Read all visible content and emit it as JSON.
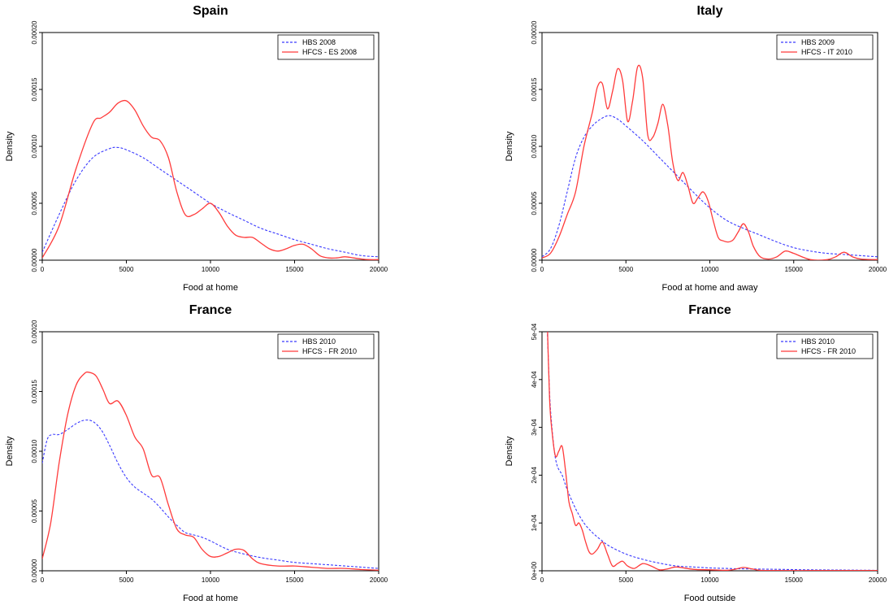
{
  "chart_data": [
    {
      "type": "line",
      "title": "Spain",
      "xlabel": "Food at home",
      "ylabel": "Density",
      "xlim": [
        0,
        20000
      ],
      "ylim": [
        0,
        0.0002
      ],
      "xticks": [
        "0",
        "5000",
        "10000",
        "15000",
        "20000"
      ],
      "xtick_values": [
        0,
        5000,
        10000,
        15000,
        20000
      ],
      "yticks": [
        "0.00000",
        "0.00005",
        "0.00010",
        "0.00015",
        "0.00020"
      ],
      "ytick_values": [
        0,
        5e-05,
        0.0001,
        0.00015,
        0.0002
      ],
      "legend_position": "top-right",
      "series": [
        {
          "name": "HBS 2008",
          "color": "#3b3bff",
          "dash": "dashed",
          "x": [
            0,
            1000,
            2000,
            3000,
            4000,
            4500,
            5000,
            6000,
            7000,
            8000,
            9000,
            10000,
            11000,
            12000,
            13000,
            14000,
            15000,
            16000,
            17000,
            18000,
            19000,
            20000
          ],
          "y": [
            7e-06,
            4e-05,
            7e-05,
            9e-05,
            9.8e-05,
            9.9e-05,
            9.7e-05,
            9e-05,
            8e-05,
            7e-05,
            6e-05,
            5e-05,
            4.2e-05,
            3.5e-05,
            2.8e-05,
            2.3e-05,
            1.8e-05,
            1.4e-05,
            1e-05,
            7e-06,
            4e-06,
            3e-06
          ]
        },
        {
          "name": "HFCS - ES 2008",
          "color": "#ff3b3b",
          "dash": "solid",
          "x": [
            0,
            1000,
            2000,
            3000,
            3500,
            4000,
            4500,
            5000,
            5500,
            6000,
            6500,
            7000,
            7500,
            8000,
            8500,
            9000,
            9500,
            10000,
            10500,
            11000,
            11500,
            12000,
            12500,
            13000,
            13500,
            14000,
            14500,
            15000,
            15500,
            16000,
            16500,
            17000,
            17500,
            18000,
            18500,
            19000,
            19500,
            20000
          ],
          "y": [
            2e-06,
            3e-05,
            8e-05,
            0.00012,
            0.000125,
            0.00013,
            0.000138,
            0.00014,
            0.000132,
            0.000118,
            0.000108,
            0.000105,
            9e-05,
            6e-05,
            4e-05,
            4e-05,
            4.5e-05,
            5e-05,
            4.2e-05,
            3e-05,
            2.2e-05,
            2e-05,
            2e-05,
            1.5e-05,
            1e-05,
            8e-06,
            1e-05,
            1.3e-05,
            1.4e-05,
            1e-05,
            4e-06,
            2e-06,
            2e-06,
            3e-06,
            2e-06,
            1e-06,
            5e-07,
            5e-07
          ]
        }
      ]
    },
    {
      "type": "line",
      "title": "Italy",
      "xlabel": "Food at home and away",
      "ylabel": "Density",
      "xlim": [
        0,
        20000
      ],
      "ylim": [
        0,
        0.0002
      ],
      "xticks": [
        "0",
        "5000",
        "10000",
        "15000",
        "20000"
      ],
      "xtick_values": [
        0,
        5000,
        10000,
        15000,
        20000
      ],
      "yticks": [
        "0.00000",
        "0.00005",
        "0.00010",
        "0.00015",
        "0.00020"
      ],
      "ytick_values": [
        0,
        5e-05,
        0.0001,
        0.00015,
        0.0002
      ],
      "legend_position": "top-right",
      "series": [
        {
          "name": "HBS 2009",
          "color": "#3b3bff",
          "dash": "dashed",
          "x": [
            0,
            500,
            1000,
            1500,
            2000,
            2500,
            3000,
            3500,
            4000,
            4500,
            5000,
            6000,
            7000,
            8000,
            9000,
            10000,
            11000,
            12000,
            13000,
            14000,
            15000,
            16000,
            17000,
            18000,
            19000,
            20000
          ],
          "y": [
            3e-06,
            1e-05,
            3e-05,
            6e-05,
            9e-05,
            0.000108,
            0.000118,
            0.000124,
            0.000127,
            0.000124,
            0.000118,
            0.000105,
            9e-05,
            7.5e-05,
            6e-05,
            4.6e-05,
            3.5e-05,
            2.8e-05,
            2.2e-05,
            1.6e-05,
            1.1e-05,
            8e-06,
            6e-06,
            5e-06,
            4e-06,
            3e-06
          ]
        },
        {
          "name": "HFCS - IT 2010",
          "color": "#ff3b3b",
          "dash": "solid",
          "x": [
            0,
            500,
            1000,
            1500,
            2000,
            2500,
            3000,
            3300,
            3600,
            3900,
            4200,
            4500,
            4800,
            5100,
            5400,
            5700,
            6000,
            6300,
            6600,
            6900,
            7200,
            7500,
            7800,
            8100,
            8400,
            8700,
            9000,
            9300,
            9600,
            9900,
            10200,
            10500,
            10800,
            11100,
            11400,
            11700,
            12000,
            12300,
            12600,
            13000,
            13500,
            14000,
            14500,
            15000,
            16000,
            17000,
            17500,
            18000,
            18500,
            19000,
            20000
          ],
          "y": [
            2e-06,
            6e-06,
            2e-05,
            4e-05,
            6e-05,
            0.0001,
            0.00013,
            0.000152,
            0.000155,
            0.000133,
            0.000148,
            0.000168,
            0.000158,
            0.000122,
            0.00014,
            0.00017,
            0.00016,
            0.00011,
            0.000108,
            0.00012,
            0.000137,
            0.000118,
            8.5e-05,
            7e-05,
            7.7e-05,
            6.5e-05,
            5e-05,
            5.5e-05,
            6e-05,
            5.2e-05,
            3.5e-05,
            2e-05,
            1.7e-05,
            1.6e-05,
            1.8e-05,
            2.5e-05,
            3.2e-05,
            2.5e-05,
            1.2e-05,
            3e-06,
            1e-06,
            3e-06,
            8e-06,
            6e-06,
            5e-07,
            5e-07,
            3e-06,
            7e-06,
            3e-06,
            1e-06,
            5e-07
          ]
        }
      ]
    },
    {
      "type": "line",
      "title": "France",
      "xlabel": "Food at home",
      "ylabel": "Density",
      "xlim": [
        0,
        20000
      ],
      "ylim": [
        0,
        0.0002
      ],
      "xticks": [
        "0",
        "5000",
        "10000",
        "15000",
        "20000"
      ],
      "xtick_values": [
        0,
        5000,
        10000,
        15000,
        20000
      ],
      "yticks": [
        "0.00000",
        "0.00005",
        "0.00010",
        "0.00015",
        "0.00020"
      ],
      "ytick_values": [
        0,
        5e-05,
        0.0001,
        0.00015,
        0.0002
      ],
      "legend_position": "top-right",
      "series": [
        {
          "name": "HBS 2010",
          "color": "#3b3bff",
          "dash": "dashed",
          "x": [
            0,
            300,
            600,
            1000,
            1500,
            2000,
            2500,
            3000,
            3500,
            4000,
            4500,
            5000,
            5500,
            6000,
            6500,
            7000,
            7500,
            8000,
            8500,
            9000,
            9500,
            10000,
            11000,
            12000,
            13000,
            14000,
            15000,
            16000,
            17000,
            18000,
            19000,
            20000
          ],
          "y": [
            9e-05,
            0.00011,
            0.000114,
            0.000114,
            0.000118,
            0.000123,
            0.000126,
            0.000125,
            0.000118,
            0.000105,
            9e-05,
            7.8e-05,
            7e-05,
            6.5e-05,
            6e-05,
            5.3e-05,
            4.5e-05,
            3.8e-05,
            3.2e-05,
            3e-05,
            2.8e-05,
            2.5e-05,
            1.8e-05,
            1.4e-05,
            1.1e-05,
            9e-06,
            7e-06,
            6e-06,
            5e-06,
            4e-06,
            3e-06,
            2e-06
          ]
        },
        {
          "name": "HFCS - FR 2010",
          "color": "#ff3b3b",
          "dash": "solid",
          "x": [
            0,
            500,
            1000,
            1500,
            2000,
            2500,
            2800,
            3200,
            3600,
            4000,
            4500,
            5000,
            5500,
            6000,
            6500,
            7000,
            7500,
            8000,
            8500,
            9000,
            9500,
            10000,
            10500,
            11000,
            11500,
            12000,
            12500,
            13000,
            14000,
            15000,
            16000,
            17000,
            18000,
            19000,
            20000
          ],
          "y": [
            1e-05,
            4e-05,
            9e-05,
            0.00013,
            0.000155,
            0.000165,
            0.000166,
            0.000163,
            0.000152,
            0.00014,
            0.000142,
            0.00013,
            0.000112,
            0.000102,
            8e-05,
            7.8e-05,
            5.5e-05,
            3.5e-05,
            3e-05,
            2.8e-05,
            1.8e-05,
            1.2e-05,
            1.2e-05,
            1.5e-05,
            1.8e-05,
            1.7e-05,
            1e-05,
            6e-06,
            4e-06,
            4e-06,
            3e-06,
            2e-06,
            2e-06,
            1e-06,
            5e-07
          ]
        }
      ]
    },
    {
      "type": "line",
      "title": "France",
      "xlabel": "Food outside",
      "ylabel": "Density",
      "xlim": [
        0,
        20000
      ],
      "ylim": [
        0,
        0.0005
      ],
      "xticks": [
        "0",
        "5000",
        "10000",
        "15000",
        "20000"
      ],
      "xtick_values": [
        0,
        5000,
        10000,
        15000,
        20000
      ],
      "yticks": [
        "0e+00",
        "1e-04",
        "2e-04",
        "3e-04",
        "4e-04",
        "5e-04"
      ],
      "ytick_values": [
        0,
        0.0001,
        0.0002,
        0.0003,
        0.0004,
        0.0005
      ],
      "legend_position": "top-right",
      "series": [
        {
          "name": "HBS 2010",
          "color": "#3b3bff",
          "dash": "dashed",
          "x": [
            300,
            400,
            500,
            700,
            900,
            1200,
            1500,
            2000,
            2500,
            3000,
            3500,
            4000,
            5000,
            6000,
            7000,
            8000,
            9000,
            10000,
            11000,
            12000,
            14000,
            16000,
            18000,
            20000
          ],
          "y": [
            0.00052,
            0.00042,
            0.00034,
            0.00026,
            0.00022,
            0.0002,
            0.00017,
            0.00013,
            0.0001,
            8e-05,
            6.5e-05,
            5.2e-05,
            3.5e-05,
            2.4e-05,
            1.6e-05,
            1e-05,
            8e-06,
            6e-06,
            5e-06,
            4e-06,
            3e-06,
            2e-06,
            1.5e-06,
            1e-06
          ]
        },
        {
          "name": "HFCS - FR 2010",
          "color": "#ff3b3b",
          "dash": "solid",
          "x": [
            300,
            450,
            600,
            800,
            1000,
            1200,
            1400,
            1600,
            1800,
            2000,
            2200,
            2400,
            2600,
            2800,
            3000,
            3300,
            3600,
            3900,
            4200,
            4500,
            4800,
            5100,
            5500,
            6000,
            6500,
            7000,
            7500,
            8000,
            9000,
            10000,
            11000,
            11500,
            12000,
            12500,
            13000,
            14000,
            16000,
            18000,
            20000
          ],
          "y": [
            0.00054,
            0.00036,
            0.00029,
            0.00024,
            0.00025,
            0.00026,
            0.00021,
            0.000145,
            0.00012,
            9.5e-05,
            0.0001,
            8.5e-05,
            6e-05,
            4e-05,
            3.5e-05,
            4.5e-05,
            6e-05,
            3.5e-05,
            1e-05,
            1.5e-05,
            2e-05,
            1e-05,
            5e-06,
            1.5e-05,
            1e-05,
            2e-06,
            4e-06,
            8e-06,
            3e-06,
            2e-06,
            1e-06,
            3e-06,
            7e-06,
            4e-06,
            1e-06,
            5e-07,
            5e-07,
            5e-07,
            5e-07
          ]
        }
      ]
    }
  ]
}
